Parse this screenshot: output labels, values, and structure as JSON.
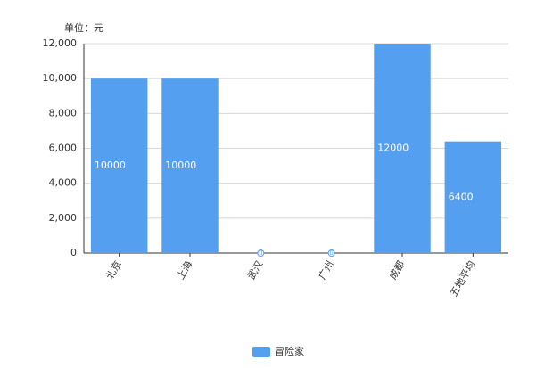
{
  "chart_data": {
    "type": "bar",
    "unit_label": "单位：元",
    "categories": [
      "北京",
      "上海",
      "武汉",
      "广州",
      "成都",
      "五地平均"
    ],
    "series": [
      {
        "name": "冒险家",
        "color": "#559ff0",
        "values": [
          10000,
          10000,
          0,
          0,
          12000,
          6400
        ]
      }
    ],
    "ylim": [
      0,
      12000
    ],
    "yticks": [
      0,
      {
        "value": 2000,
        "label": "2,000"
      },
      {
        "value": 4000,
        "label": "4,000"
      },
      {
        "value": 6000,
        "label": "6,000"
      },
      {
        "value": 8000,
        "label": "8,000"
      },
      {
        "value": 10000,
        "label": "10,000"
      },
      {
        "value": 12000,
        "label": "12,000"
      }
    ],
    "grid": true,
    "legend": "bottom"
  }
}
